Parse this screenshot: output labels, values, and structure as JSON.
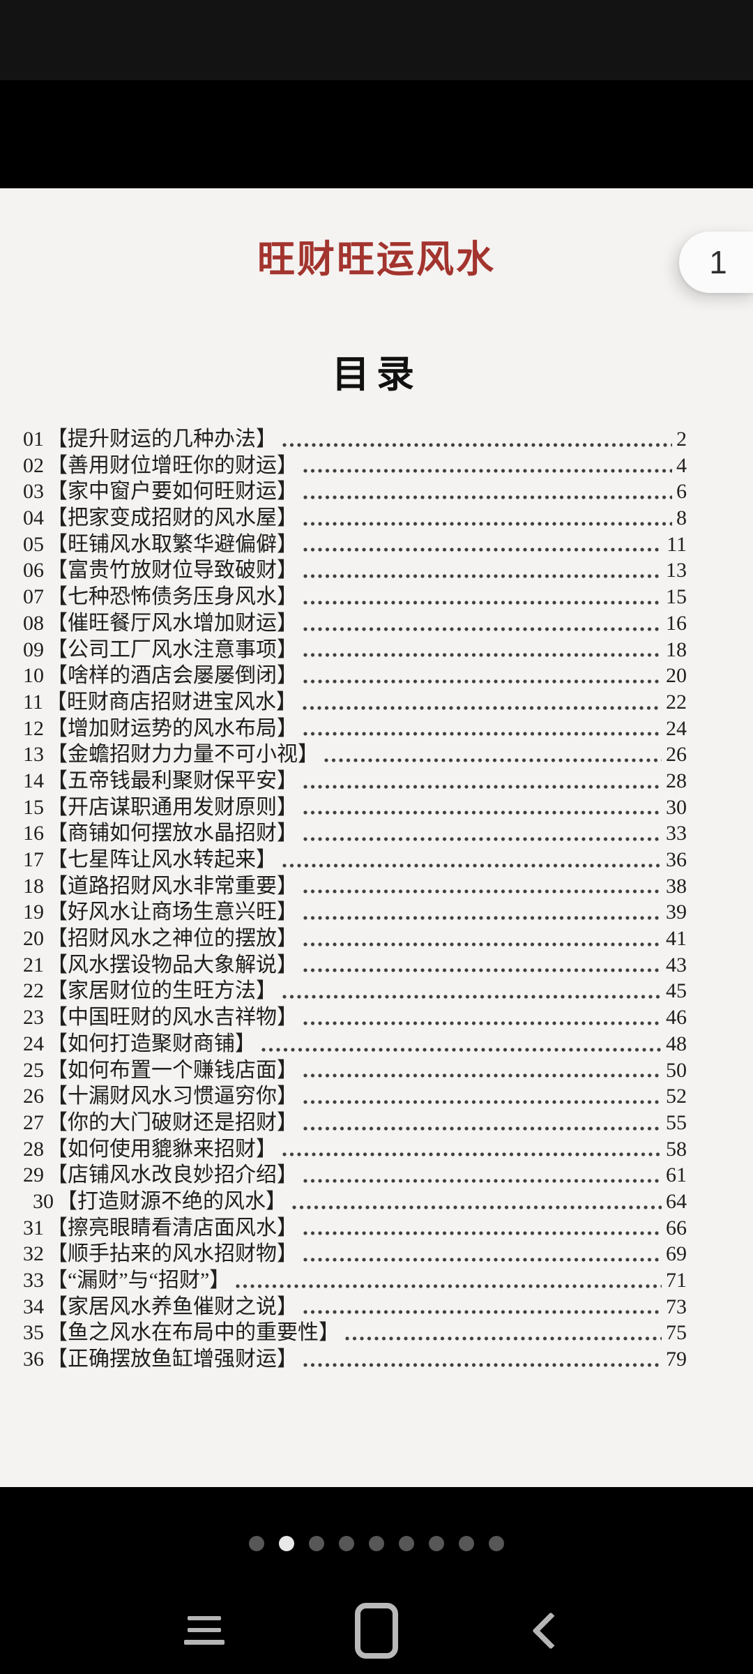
{
  "reader": {
    "book_title": "旺财旺运风水",
    "page_tab_label": "1",
    "toc_heading": "目录"
  },
  "toc_entries": [
    {
      "num": "01",
      "title": "【提升财运的几种办法】",
      "page": "2"
    },
    {
      "num": "02",
      "title": "【善用财位增旺你的财运】",
      "page": "4"
    },
    {
      "num": "03",
      "title": "【家中窗户要如何旺财运】",
      "page": "6"
    },
    {
      "num": "04",
      "title": "【把家变成招财的风水屋】",
      "page": "8"
    },
    {
      "num": "05",
      "title": "【旺铺风水取繁华避偏僻】",
      "page": "11"
    },
    {
      "num": "06",
      "title": "【富贵竹放财位导致破财】",
      "page": "13"
    },
    {
      "num": "07",
      "title": "【七种恐怖债务压身风水】",
      "page": "15"
    },
    {
      "num": "08",
      "title": "【催旺餐厅风水增加财运】",
      "page": "16"
    },
    {
      "num": "09",
      "title": "【公司工厂风水注意事项】",
      "page": "18"
    },
    {
      "num": "10",
      "title": "【啥样的酒店会屡屡倒闭】",
      "page": "20"
    },
    {
      "num": "11",
      "title": "【旺财商店招财进宝风水】",
      "page": "22"
    },
    {
      "num": "12",
      "title": "【增加财运势的风水布局】",
      "page": "24"
    },
    {
      "num": "13",
      "title": "【金蟾招财力力量不可小视】",
      "page": "26"
    },
    {
      "num": "14",
      "title": "【五帝钱最利聚财保平安】",
      "page": "28"
    },
    {
      "num": "15",
      "title": "【开店谋职通用发财原则】",
      "page": "30"
    },
    {
      "num": "16",
      "title": "【商铺如何摆放水晶招财】",
      "page": "33"
    },
    {
      "num": "17",
      "title": "【七星阵让风水转起来】",
      "page": "36"
    },
    {
      "num": "18",
      "title": "【道路招财风水非常重要】",
      "page": "38"
    },
    {
      "num": "19",
      "title": "【好风水让商场生意兴旺】",
      "page": "39"
    },
    {
      "num": "20",
      "title": "【招财风水之神位的摆放】",
      "page": "41"
    },
    {
      "num": "21",
      "title": "【风水摆设物品大象解说】",
      "page": "43"
    },
    {
      "num": "22",
      "title": "【家居财位的生旺方法】",
      "page": "45"
    },
    {
      "num": "23",
      "title": "【中国旺财的风水吉祥物】",
      "page": "46"
    },
    {
      "num": "24",
      "title": "【如何打造聚财商铺】",
      "page": "48"
    },
    {
      "num": "25",
      "title": "【如何布置一个赚钱店面】",
      "page": "50"
    },
    {
      "num": "26",
      "title": "【十漏财风水习惯逼穷你】",
      "page": "52"
    },
    {
      "num": "27",
      "title": "【你的大门破财还是招财】",
      "page": "55"
    },
    {
      "num": "28",
      "title": "【如何使用貔貅来招财】",
      "page": "58"
    },
    {
      "num": "29",
      "title": "【店铺风水改良妙招介绍】",
      "page": "61"
    },
    {
      "num": "30",
      "title": "【打造财源不绝的风水】",
      "page": "64",
      "indent": true
    },
    {
      "num": "31",
      "title": "【擦亮眼睛看清店面风水】",
      "page": "66"
    },
    {
      "num": "32",
      "title": "【顺手拈来的风水招财物】",
      "page": "69"
    },
    {
      "num": "33",
      "title": "【“漏财”与“招财”】",
      "page": "71"
    },
    {
      "num": "34",
      "title": "【家居风水养鱼催财之说】",
      "page": "73"
    },
    {
      "num": "35",
      "title": "【鱼之风水在布局中的重要性】",
      "page": "75"
    },
    {
      "num": "36",
      "title": "【正确摆放鱼缸增强财运】",
      "page": "79"
    }
  ],
  "pagination": {
    "total_dots": 9,
    "active_dot_index": 1
  },
  "nav_bar": {
    "icons": [
      "recent-apps-icon",
      "home-icon",
      "back-icon"
    ]
  },
  "colors": {
    "title_red": "#a3342e",
    "page_bg": "#f4f3f1",
    "body_text": "#1f1f1f",
    "tab_bg": "#fbfbfb",
    "dot_inactive": "#575757",
    "dot_active": "#e8e8e8",
    "nav_icon": "#b5b5b5"
  }
}
